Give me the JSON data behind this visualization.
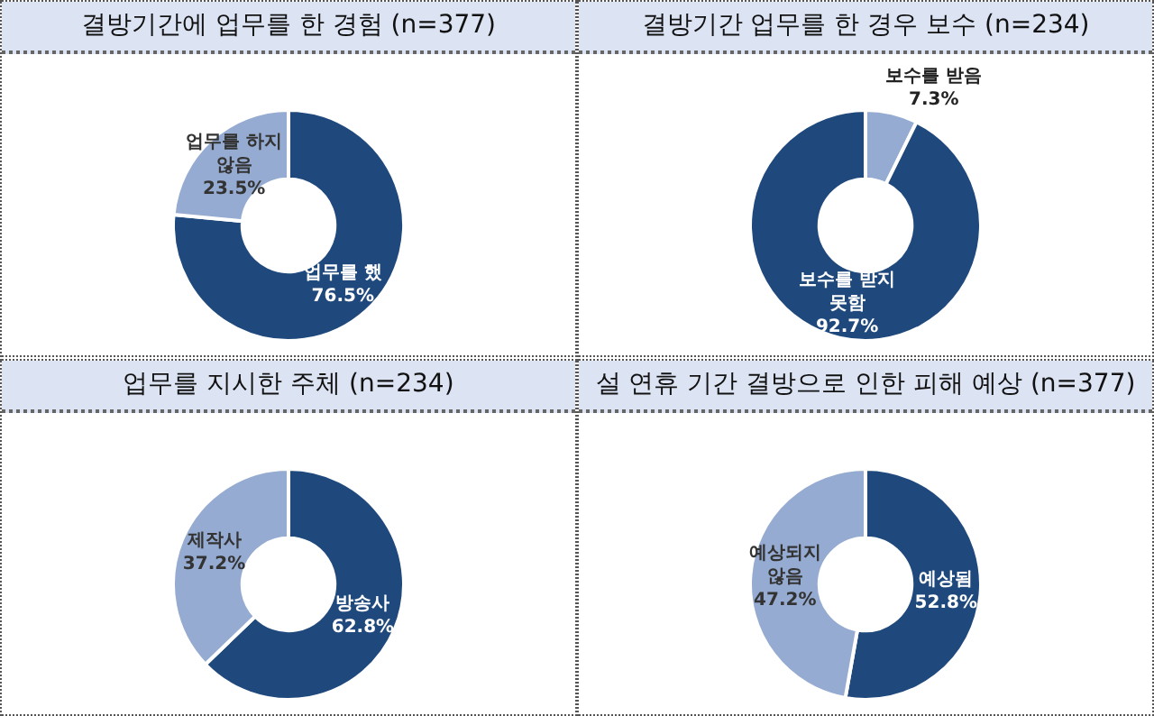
{
  "chart_data": [
    {
      "type": "donut",
      "title": "결방기간에 업무를 한 경험 (n=377)",
      "categories": [
        "업무를 했",
        "업무를 하지 않음"
      ],
      "values": [
        76.5,
        23.5
      ],
      "colors": [
        "#1f497d",
        "#95abd1"
      ],
      "value_labels": [
        "76.5%",
        "23.5%"
      ],
      "legend": false
    },
    {
      "type": "donut",
      "title": "결방기간 업무를 한 경우 보수 (n=234)",
      "categories": [
        "보수를 받음",
        "보수를 받지 못함"
      ],
      "values": [
        7.3,
        92.7
      ],
      "colors": [
        "#95abd1",
        "#1f497d"
      ],
      "value_labels": [
        "7.3%",
        "92.7%"
      ],
      "legend": false
    },
    {
      "type": "donut",
      "title": "업무를 지시한 주체 (n=234)",
      "categories": [
        "방송사",
        "제작사"
      ],
      "values": [
        62.8,
        37.2
      ],
      "colors": [
        "#1f497d",
        "#95abd1"
      ],
      "value_labels": [
        "62.8%",
        "37.2%"
      ],
      "legend": false
    },
    {
      "type": "donut",
      "title": "설 연휴 기간 결방으로 인한 피해 예상 (n=377)",
      "categories": [
        "예상됨",
        "예상되지 않음"
      ],
      "values": [
        52.8,
        47.2
      ],
      "colors": [
        "#1f497d",
        "#95abd1"
      ],
      "value_labels": [
        "52.8%",
        "47.2%"
      ],
      "legend": false
    }
  ]
}
